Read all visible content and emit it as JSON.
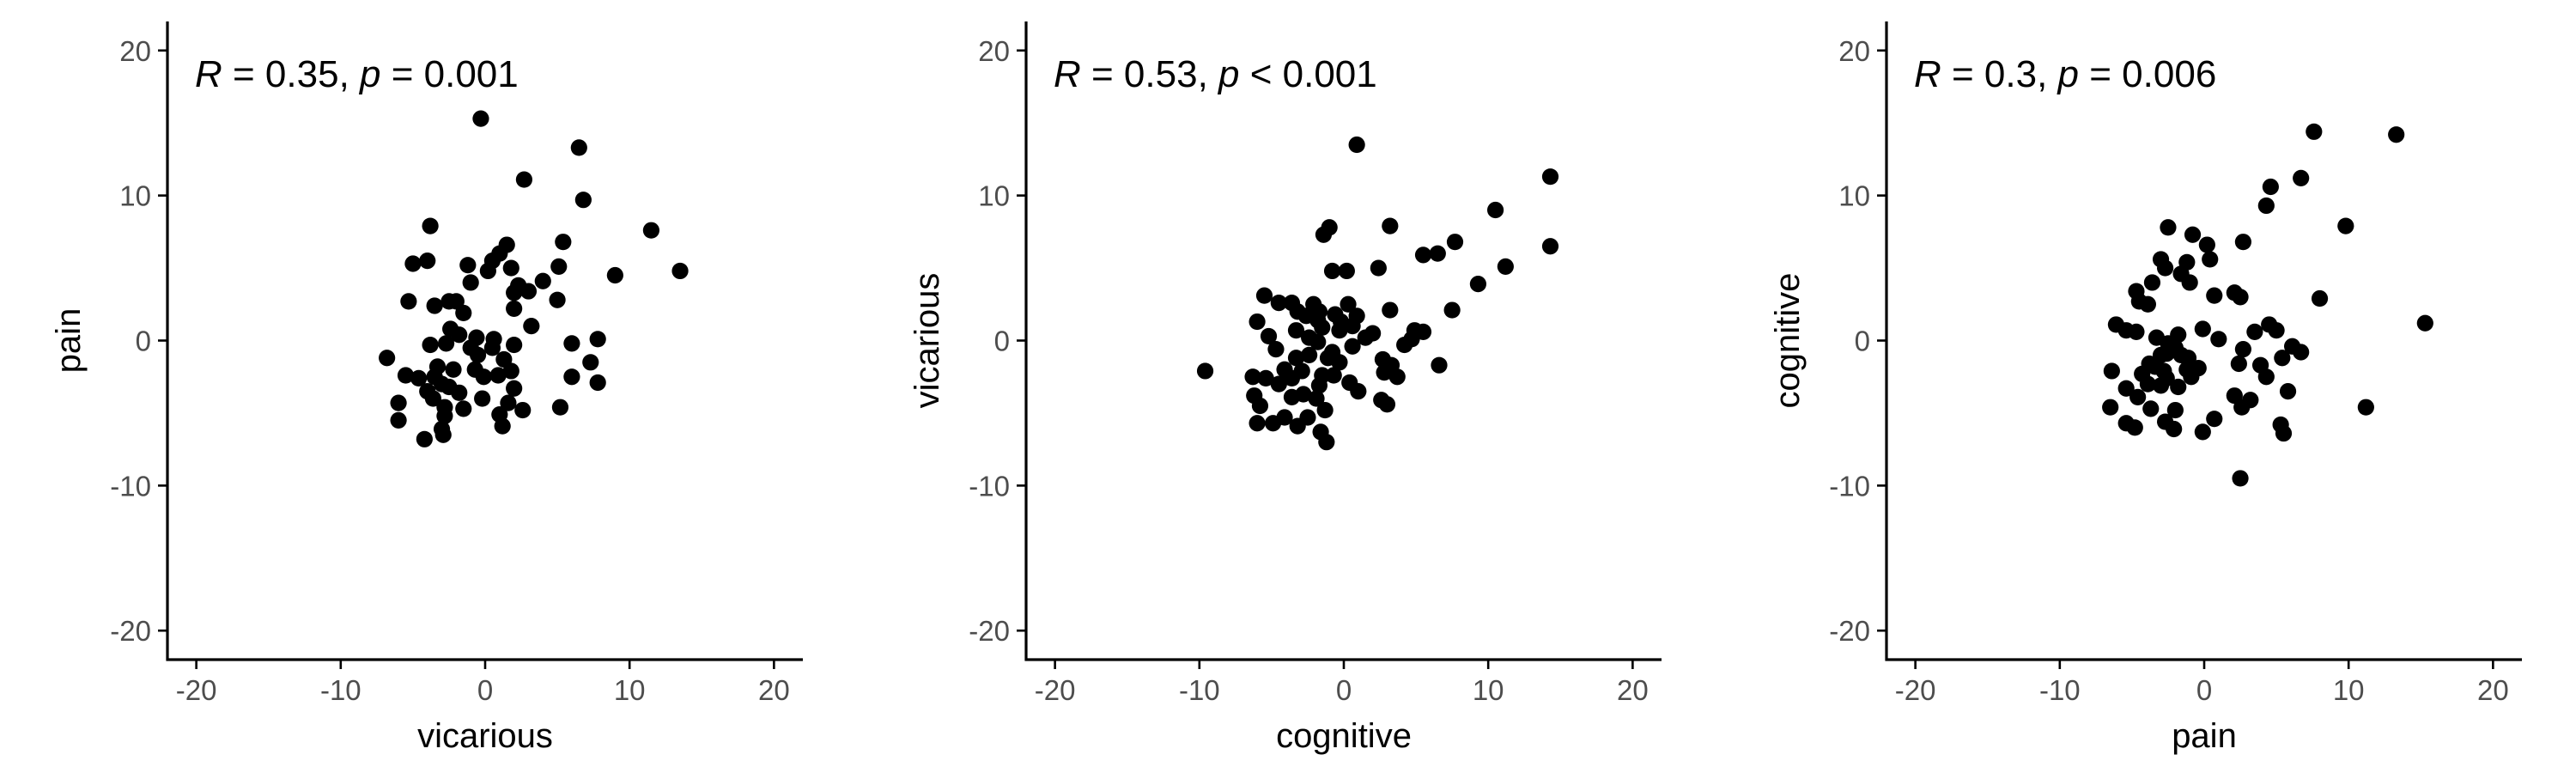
{
  "chart_data": [
    {
      "type": "scatter",
      "xlabel": "vicarious",
      "ylabel": "pain",
      "annotation": {
        "r_label": "R",
        "r_text": " = 0.35, ",
        "p_label": "p",
        "p_text": " = 0.001"
      },
      "xlim": [
        -22,
        22
      ],
      "ylim": [
        -22,
        22
      ],
      "xticks": [
        -20,
        -10,
        0,
        10,
        20
      ],
      "yticks": [
        -20,
        -10,
        0,
        10,
        20
      ],
      "grid": false,
      "points": [
        [
          -0.3,
          15.3
        ],
        [
          6.5,
          13.3
        ],
        [
          2.7,
          11.1
        ],
        [
          6.8,
          9.7
        ],
        [
          11.5,
          7.6
        ],
        [
          13.5,
          4.8
        ],
        [
          9.0,
          4.5
        ],
        [
          -3.8,
          7.9
        ],
        [
          1.5,
          6.6
        ],
        [
          5.4,
          6.8
        ],
        [
          1.0,
          6.0
        ],
        [
          0.5,
          5.5
        ],
        [
          -4.0,
          5.5
        ],
        [
          -5.0,
          5.3
        ],
        [
          -1.2,
          5.2
        ],
        [
          5.1,
          5.1
        ],
        [
          0.2,
          4.8
        ],
        [
          1.8,
          5.0
        ],
        [
          4.0,
          4.1
        ],
        [
          -1.0,
          4.0
        ],
        [
          2.3,
          3.8
        ],
        [
          2.0,
          3.3
        ],
        [
          3.0,
          3.4
        ],
        [
          -5.3,
          2.7
        ],
        [
          -2.5,
          2.7
        ],
        [
          -2.0,
          2.7
        ],
        [
          -3.5,
          2.4
        ],
        [
          2.0,
          2.2
        ],
        [
          5.0,
          2.8
        ],
        [
          -1.5,
          1.9
        ],
        [
          3.2,
          1.0
        ],
        [
          -2.4,
          0.8
        ],
        [
          -1.8,
          0.4
        ],
        [
          -0.6,
          0.2
        ],
        [
          0.6,
          0.1
        ],
        [
          -2.7,
          -0.2
        ],
        [
          -3.8,
          -0.3
        ],
        [
          -1.0,
          -0.5
        ],
        [
          0.5,
          -0.5
        ],
        [
          2.0,
          -0.3
        ],
        [
          6.0,
          -0.2
        ],
        [
          7.8,
          0.1
        ],
        [
          -6.8,
          -1.2
        ],
        [
          -0.5,
          -1.0
        ],
        [
          1.3,
          -1.3
        ],
        [
          7.3,
          -1.5
        ],
        [
          -3.3,
          -1.8
        ],
        [
          -2.2,
          -2.0
        ],
        [
          -0.7,
          -2.0
        ],
        [
          1.8,
          -2.1
        ],
        [
          -5.5,
          -2.4
        ],
        [
          -4.6,
          -2.6
        ],
        [
          -3.5,
          -2.5
        ],
        [
          -0.1,
          -2.5
        ],
        [
          0.9,
          -2.4
        ],
        [
          6.0,
          -2.5
        ],
        [
          7.8,
          -2.9
        ],
        [
          -3.0,
          -3.0
        ],
        [
          -2.5,
          -3.2
        ],
        [
          2.0,
          -3.3
        ],
        [
          -4.0,
          -3.5
        ],
        [
          -1.8,
          -3.6
        ],
        [
          -3.6,
          -4.0
        ],
        [
          -0.2,
          -4.0
        ],
        [
          1.6,
          -4.3
        ],
        [
          -6.0,
          -4.3
        ],
        [
          -2.8,
          -4.6
        ],
        [
          -1.5,
          -4.7
        ],
        [
          2.6,
          -4.8
        ],
        [
          5.2,
          -4.6
        ],
        [
          -2.8,
          -5.2
        ],
        [
          1.0,
          -5.1
        ],
        [
          -6.0,
          -5.5
        ],
        [
          1.2,
          -5.9
        ],
        [
          -3.0,
          -6.1
        ],
        [
          -4.2,
          -6.8
        ],
        [
          -2.9,
          -6.5
        ]
      ]
    },
    {
      "type": "scatter",
      "xlabel": "cognitive",
      "ylabel": "vicarious",
      "annotation": {
        "r_label": "R",
        "r_text": " = 0.53, ",
        "p_label": "p",
        "p_text": " < 0.001"
      },
      "xlim": [
        -22,
        22
      ],
      "ylim": [
        -22,
        22
      ],
      "xticks": [
        -20,
        -10,
        0,
        10,
        20
      ],
      "yticks": [
        -20,
        -10,
        0,
        10,
        20
      ],
      "grid": false,
      "points": [
        [
          0.9,
          13.5
        ],
        [
          14.3,
          11.3
        ],
        [
          10.5,
          9.0
        ],
        [
          3.2,
          7.9
        ],
        [
          -1.0,
          7.8
        ],
        [
          -1.4,
          7.3
        ],
        [
          7.7,
          6.8
        ],
        [
          14.3,
          6.5
        ],
        [
          5.5,
          5.9
        ],
        [
          6.5,
          6.0
        ],
        [
          11.2,
          5.1
        ],
        [
          -0.8,
          4.8
        ],
        [
          0.2,
          4.8
        ],
        [
          2.4,
          5.0
        ],
        [
          9.3,
          3.9
        ],
        [
          -5.5,
          3.1
        ],
        [
          -4.5,
          2.6
        ],
        [
          -3.6,
          2.6
        ],
        [
          0.3,
          2.5
        ],
        [
          -2.1,
          2.5
        ],
        [
          -3.2,
          2.0
        ],
        [
          7.5,
          2.1
        ],
        [
          3.2,
          2.1
        ],
        [
          -1.7,
          2.0
        ],
        [
          -2.6,
          1.7
        ],
        [
          -0.6,
          1.8
        ],
        [
          0.9,
          1.7
        ],
        [
          -1.8,
          1.4
        ],
        [
          -6.0,
          1.3
        ],
        [
          -0.2,
          1.3
        ],
        [
          0.6,
          1.0
        ],
        [
          -1.5,
          0.9
        ],
        [
          -0.3,
          0.7
        ],
        [
          -3.3,
          0.7
        ],
        [
          4.9,
          0.7
        ],
        [
          5.5,
          0.6
        ],
        [
          2.0,
          0.5
        ],
        [
          -5.2,
          0.3
        ],
        [
          1.5,
          0.2
        ],
        [
          -2.4,
          0.2
        ],
        [
          -1.8,
          -0.1
        ],
        [
          4.7,
          0.1
        ],
        [
          4.2,
          -0.3
        ],
        [
          0.6,
          -0.4
        ],
        [
          -4.7,
          -0.6
        ],
        [
          -0.8,
          -0.8
        ],
        [
          -2.4,
          -1.0
        ],
        [
          -3.3,
          -1.2
        ],
        [
          -1.1,
          -1.2
        ],
        [
          2.7,
          -1.3
        ],
        [
          -0.3,
          -1.5
        ],
        [
          6.6,
          -1.7
        ],
        [
          3.3,
          -1.7
        ],
        [
          -9.6,
          -2.1
        ],
        [
          -4.1,
          -2.0
        ],
        [
          -2.9,
          -2.1
        ],
        [
          2.8,
          -2.2
        ],
        [
          -1.5,
          -2.4
        ],
        [
          3.7,
          -2.5
        ],
        [
          -6.3,
          -2.5
        ],
        [
          -5.4,
          -2.6
        ],
        [
          -3.6,
          -2.6
        ],
        [
          -0.7,
          -2.4
        ],
        [
          -4.5,
          -3.0
        ],
        [
          0.4,
          -2.9
        ],
        [
          -1.7,
          -3.1
        ],
        [
          1.0,
          -3.5
        ],
        [
          -6.2,
          -3.8
        ],
        [
          -3.6,
          -3.9
        ],
        [
          -2.8,
          -3.7
        ],
        [
          -1.9,
          -4.0
        ],
        [
          2.6,
          -4.1
        ],
        [
          3.0,
          -4.4
        ],
        [
          -5.8,
          -4.5
        ],
        [
          -4.1,
          -5.3
        ],
        [
          -2.5,
          -5.3
        ],
        [
          -1.3,
          -4.8
        ],
        [
          -6.0,
          -5.7
        ],
        [
          -4.9,
          -5.7
        ],
        [
          -3.2,
          -5.9
        ],
        [
          -1.6,
          -6.3
        ],
        [
          -1.2,
          -7.0
        ]
      ]
    },
    {
      "type": "scatter",
      "xlabel": "pain",
      "ylabel": "cognitive",
      "annotation": {
        "r_label": "R",
        "r_text": " = 0.3, ",
        "p_label": "p",
        "p_text": " = 0.006"
      },
      "xlim": [
        -22,
        22
      ],
      "ylim": [
        -22,
        22
      ],
      "xticks": [
        -20,
        -10,
        0,
        10,
        20
      ],
      "yticks": [
        -20,
        -10,
        0,
        10,
        20
      ],
      "grid": false,
      "points": [
        [
          7.6,
          14.4
        ],
        [
          13.3,
          14.2
        ],
        [
          6.7,
          11.2
        ],
        [
          4.6,
          10.6
        ],
        [
          4.3,
          9.3
        ],
        [
          9.8,
          7.9
        ],
        [
          -2.5,
          7.8
        ],
        [
          -0.8,
          7.3
        ],
        [
          2.7,
          6.8
        ],
        [
          0.2,
          6.6
        ],
        [
          -3.0,
          5.6
        ],
        [
          -2.7,
          5.0
        ],
        [
          -1.2,
          5.4
        ],
        [
          0.4,
          5.6
        ],
        [
          -1.6,
          4.6
        ],
        [
          -3.6,
          4.0
        ],
        [
          -1.0,
          4.0
        ],
        [
          -4.7,
          3.4
        ],
        [
          2.1,
          3.3
        ],
        [
          0.7,
          3.1
        ],
        [
          8.0,
          2.9
        ],
        [
          -4.5,
          2.7
        ],
        [
          -3.9,
          2.5
        ],
        [
          2.5,
          3.0
        ],
        [
          15.3,
          1.2
        ],
        [
          -6.1,
          1.1
        ],
        [
          -5.4,
          0.7
        ],
        [
          -4.7,
          0.6
        ],
        [
          -0.1,
          0.8
        ],
        [
          -1.8,
          0.4
        ],
        [
          4.5,
          1.1
        ],
        [
          5.0,
          0.7
        ],
        [
          3.5,
          0.6
        ],
        [
          -3.3,
          0.2
        ],
        [
          -2.5,
          -0.2
        ],
        [
          -2.0,
          -0.5
        ],
        [
          1.0,
          0.1
        ],
        [
          6.1,
          -0.4
        ],
        [
          6.7,
          -0.8
        ],
        [
          2.7,
          -0.6
        ],
        [
          -3.0,
          -1.0
        ],
        [
          -2.6,
          -0.9
        ],
        [
          -1.6,
          -1.0
        ],
        [
          -1.1,
          -1.2
        ],
        [
          5.4,
          -1.2
        ],
        [
          -3.8,
          -1.6
        ],
        [
          -3.4,
          -1.8
        ],
        [
          2.4,
          -1.6
        ],
        [
          3.9,
          -1.7
        ],
        [
          -0.4,
          -1.9
        ],
        [
          -2.8,
          -2.1
        ],
        [
          -1.2,
          -2.0
        ],
        [
          -6.4,
          -2.1
        ],
        [
          -4.3,
          -2.3
        ],
        [
          -2.6,
          -2.6
        ],
        [
          -0.9,
          -2.5
        ],
        [
          4.3,
          -2.5
        ],
        [
          -3.9,
          -3.0
        ],
        [
          -3.0,
          -3.1
        ],
        [
          -1.8,
          -3.2
        ],
        [
          5.8,
          -3.5
        ],
        [
          -5.4,
          -3.3
        ],
        [
          -4.6,
          -3.9
        ],
        [
          2.1,
          -3.8
        ],
        [
          3.2,
          -4.1
        ],
        [
          -6.5,
          -4.6
        ],
        [
          11.2,
          -4.6
        ],
        [
          -3.7,
          -4.7
        ],
        [
          -2.0,
          -4.8
        ],
        [
          2.6,
          -4.6
        ],
        [
          0.7,
          -5.4
        ],
        [
          -5.4,
          -5.7
        ],
        [
          -4.8,
          -6.0
        ],
        [
          -2.7,
          -5.6
        ],
        [
          -2.1,
          -6.1
        ],
        [
          5.3,
          -5.8
        ],
        [
          5.5,
          -6.4
        ],
        [
          -0.1,
          -6.3
        ],
        [
          2.5,
          -9.5
        ]
      ]
    }
  ]
}
